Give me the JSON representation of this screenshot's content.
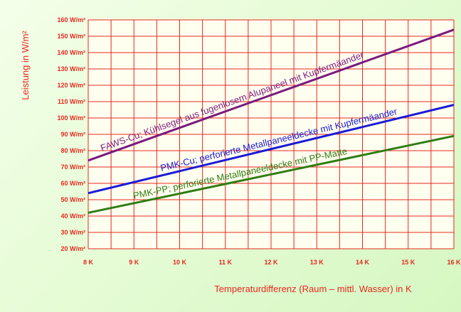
{
  "chart_data": {
    "type": "line",
    "title": "",
    "xlabel": "Temperaturdifferenz (Raum – mittl. Wasser) in K",
    "ylabel": "Leistung in W/m²",
    "x_ticks": [
      "8 K",
      "9 K",
      "10 K",
      "11 K",
      "12 K",
      "13 K",
      "14 K",
      "15 K",
      "16 K"
    ],
    "y_ticks": [
      "20 W/m²",
      "30 W/m²",
      "40 W/m²",
      "50 W/m²",
      "60 W/m²",
      "70 W/m²",
      "80 W/m²",
      "90 W/m²",
      "100 W/m²",
      "110 W/m²",
      "120 W/m²",
      "130 W/m²",
      "140 W/m²",
      "150 W/m²",
      "160 W/m²"
    ],
    "xlim": [
      8,
      16
    ],
    "ylim": [
      20,
      160
    ],
    "grid": true,
    "grid_color": "#e8281e",
    "series": [
      {
        "name": "FAWS-Cu; Kühlsegel aus fugenlosem Alupaneel mit Kupfermäander",
        "color": "#7a1a7e",
        "x": [
          8,
          16
        ],
        "y": [
          74,
          154
        ]
      },
      {
        "name": "PMK-Cu; perforierte Metallpaneeldecke mit Kupfermäander",
        "color": "#1a1ad8",
        "x": [
          8,
          16
        ],
        "y": [
          54,
          108
        ]
      },
      {
        "name": "PMK-PP; perforierte Metallpaneeldecke mit PP-Matte",
        "color": "#2e7d12",
        "x": [
          8,
          16
        ],
        "y": [
          42,
          89
        ]
      }
    ]
  }
}
